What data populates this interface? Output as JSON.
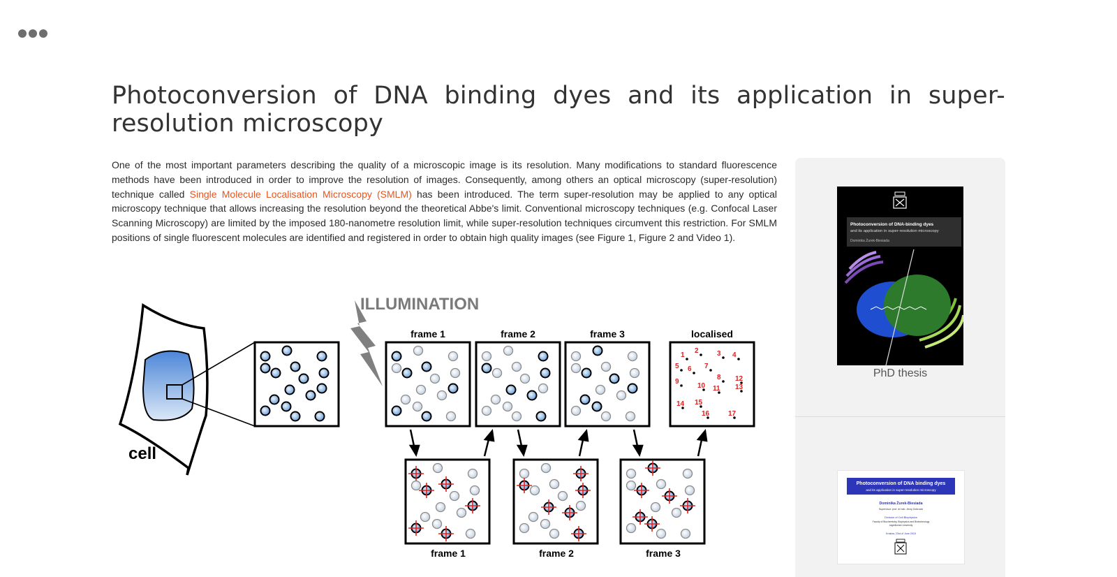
{
  "page": {
    "title": "Photoconversion of DNA binding dyes and its application in super-resolution microscopy",
    "intro_before": "One of the most important parameters describing the quality of a microscopic image is its resolution. Many modifications to standard fluorescence methods have been introduced in order to improve the resolution of images. Consequently, among others an optical microscopy (super-resolution) technique called ",
    "intro_link": "Single Molecule Localisation Microscopy (SMLM)",
    "intro_after": " has been introduced. The term super-resolution may be applied to any optical microscopy technique that allows increasing the resolution beyond the theoretical Abbe's limit. Conventional microscopy techniques (e.g. Confocal Laser Scanning Microscopy) are limited by the imposed 180-nanometre resolution limit, while super-resolution techniques circumvent this restriction. For SMLM positions of single fluorescent molecules are identified and registered in order to obtain high quality images (see Figure 1, Figure 2 and Video 1)."
  },
  "colors": {
    "link": "#e8541e",
    "sidebar_bg": "#f2f2f2",
    "marker": "#e02020",
    "cell_fill": "#5b8ed6"
  },
  "figure": {
    "illumination": "ILLUMINATION",
    "cell_label": "cell",
    "top_labels": [
      "frame 1",
      "frame 2",
      "frame 3",
      "localised"
    ],
    "bottom_labels": [
      "frame 1",
      "frame 2",
      "frame 3"
    ],
    "localised_numbers": [
      "1",
      "2",
      "3",
      "4",
      "5",
      "6",
      "7",
      "8",
      "9",
      "10",
      "11",
      "12",
      "13",
      "14",
      "15",
      "16",
      "17"
    ]
  },
  "sidebar": {
    "cover1": {
      "title": "Photoconversion of DNA-binding dyes",
      "subtitle": "and its application in super-resolution microscopy",
      "author": "Dominika Żurek-Biesiada"
    },
    "caption": "PhD thesis",
    "cover2": {
      "title": "Photoconversion of DNA binding dyes",
      "subtitle": "and its application in super-resolution microscopy",
      "author": "Dominika Żurek-Biesiada",
      "supervisor": "Supervisor: prof. dr hab. Jerzy Dobrucki",
      "division": "Division of Cell Biophysics",
      "faculty": "Faculty of Biochemistry, Biophysics and Biotechnology",
      "university": "Jagiellonian University",
      "date": "Kraków, 23rd of June 2015"
    }
  }
}
